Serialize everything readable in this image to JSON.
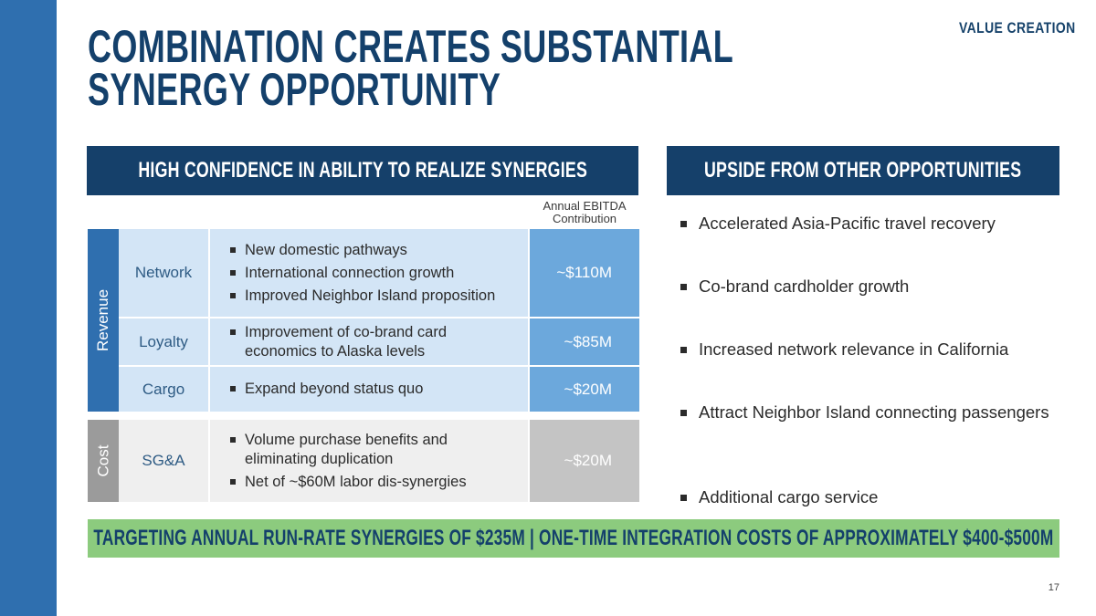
{
  "header": {
    "tag": "VALUE CREATION",
    "title_line1": "COMBINATION CREATES SUBSTANTIAL",
    "title_line2": "SYNERGY OPPORTUNITY"
  },
  "left_panel": {
    "heading": "HIGH CONFIDENCE IN ABILITY TO REALIZE SYNERGIES",
    "column_header_line1": "Annual EBITDA",
    "column_header_line2": "Contribution",
    "revenue_label": "Revenue",
    "cost_label": "Cost",
    "rows": [
      {
        "category": "Network",
        "bullets": [
          "New domestic pathways",
          "International connection growth",
          "Improved Neighbor Island proposition"
        ],
        "value": "~$110M"
      },
      {
        "category": "Loyalty",
        "bullets": [
          "Improvement of co-brand card economics to Alaska levels"
        ],
        "value": "~$85M"
      },
      {
        "category": "Cargo",
        "bullets": [
          "Expand beyond status quo"
        ],
        "value": "~$20M"
      },
      {
        "category": "SG&A",
        "bullets": [
          "Volume purchase benefits and eliminating duplication",
          "Net of ~$60M labor dis-synergies"
        ],
        "value": "~$20M"
      }
    ]
  },
  "right_panel": {
    "heading": "UPSIDE FROM OTHER OPPORTUNITIES",
    "items": [
      "Accelerated Asia-Pacific travel recovery",
      "Co-brand cardholder growth",
      "Increased network relevance in California",
      "Attract Neighbor Island connecting passengers",
      "Additional cargo service"
    ]
  },
  "banner": "TARGETING ANNUAL RUN-RATE SYNERGIES OF $235M | ONE-TIME INTEGRATION COSTS OF APPROXIMATELY $400-$500M",
  "page_number": "17",
  "colors": {
    "navy": "#15406a",
    "sidebar_blue": "#2f6faf",
    "value_blue": "#6ca8dc",
    "light_blue": "#d3e5f6",
    "banner_green": "#8ccb7e",
    "cost_gray": "#9b9b9b"
  }
}
